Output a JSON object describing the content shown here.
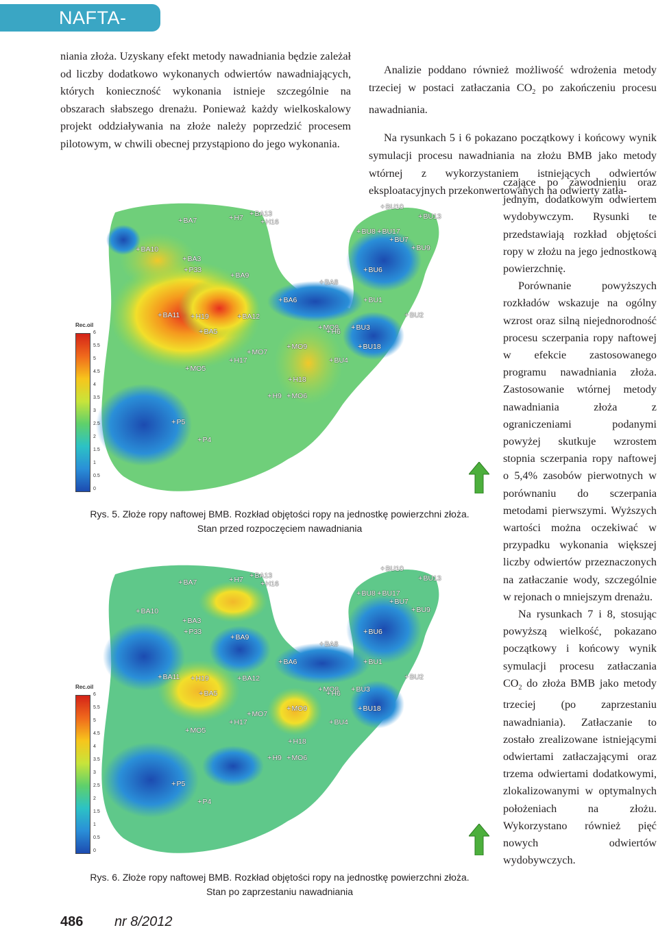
{
  "header": {
    "journal": "NAFTA-GAZ"
  },
  "left_column": {
    "para1": "niania złoża. Uzyskany efekt metody nawadniania będzie zależał od liczby dodatkowo wykonanych odwiertów nawadniających, których konieczność wykonania istnieje szczególnie na obszarach słabszego drenażu. Ponieważ każdy wielkoskalowy projekt oddziaływania na złoże należy poprzedzić procesem pilotowym, w chwili obecnej przystąpiono do jego wykonania."
  },
  "right_column_top": {
    "para1_a": "Analizie poddano również możliwość wdrożenia metody trzeciej w postaci zatłaczania CO",
    "para1_sub": "2",
    "para1_b": " po zakończeniu procesu nawadniania.",
    "para2": "Na rysunkach 5 i 6 pokazano początkowy i końcowy wynik symulacji procesu nawadniania na złożu BMB jako metody wtórnej z wykorzystaniem istniejących odwiertów eksploatacyjnych przekonwertowanych na odwierty zatła-"
  },
  "right_column": {
    "para2_cont": "czające po zawodnieniu oraz jednym, dodatkowym odwiertem wydobywczym. Rysunki te przedstawiają rozkład objętości ropy w złożu na jego jednostkową powierzchnię.",
    "para3": "Porównanie powyższych rozkładów wskazuje na ogólny wzrost oraz silną niejednorodność procesu sczerpania ropy naftowej w efekcie zastosowanego programu nawadniania złoża. Zastosowanie wtórnej metody nawadniania złoża z ograniczeniami podanymi powyżej skutkuje wzrostem stopnia sczerpania ropy naftowej o 5,4% zasobów pierwotnych w porównaniu do sczerpania metodami pierwszymi. Wyższych wartości można oczekiwać w przypadku wykonania większej liczby odwiertów przeznaczonych na zatłaczanie wody, szczególnie w rejonach o mniejszym drenażu.",
    "para4_a": "Na rysunkach 7 i 8, stosując powyższą wielkość, pokazano początkowy i końcowy wynik symulacji procesu zatłaczania CO",
    "para4_sub": "2",
    "para4_b": " do złoża BMB jako metody trzeciej (po zaprzestaniu nawadniania). Zatłaczanie to zostało zrealizowane istniejącymi odwiertami zatłaczającymi oraz trzema odwiertami dodatkowymi, zlokalizowanymi w optymalnych położeniach na złożu. Wykorzystano również pięć nowych odwiertów wydobywczych."
  },
  "legend": {
    "title": "Rec.oil",
    "ticks": [
      "6",
      "5.5",
      "5",
      "4.5",
      "4",
      "3.5",
      "3",
      "2.5",
      "2",
      "1.5",
      "1",
      "0.5",
      "0"
    ]
  },
  "wells": [
    "BA7",
    "H7",
    "BA13",
    "H16",
    "BU10",
    "BU13",
    "BA10",
    "BU8",
    "BU17",
    "BU7",
    "BU9",
    "BA3",
    "P33",
    "BA9",
    "BA8",
    "BU6",
    "BA6",
    "BU1",
    "BA11",
    "H19",
    "BA12",
    "BU2",
    "MO8",
    "H6",
    "BU3",
    "BA5",
    "MO9",
    "BU18",
    "MO7",
    "H17",
    "BU4",
    "MO5",
    "H18",
    "H9",
    "MO6",
    "P5",
    "P4"
  ],
  "figures": [
    {
      "caption_line1": "Rys. 5. Złoże ropy naftowej BMB. Rozkład objętości ropy na jednostkę powierzchni złoża.",
      "caption_line2": "Stan przed rozpoczęciem nawadniania"
    },
    {
      "caption_line1": "Rys. 6. Złoże ropy naftowej BMB. Rozkład objętości ropy na jednostkę powierzchni złoża.",
      "caption_line2": "Stan po zaprzestaniu nawadniania"
    }
  ],
  "footer": {
    "page": "486",
    "issue": "nr 8/2012"
  },
  "colors": {
    "header_bg": "#3aa6c4",
    "north_arrow": "#4caf3c"
  }
}
